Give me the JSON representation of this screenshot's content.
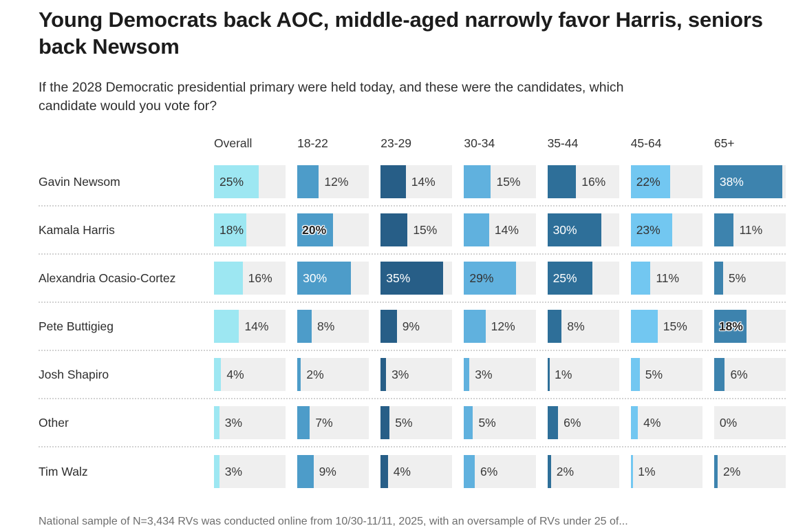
{
  "title": "Young Democrats back AOC, middle-aged narrowly favor Harris, seniors back Newsom",
  "subtitle": "If the 2028 Democratic presidential primary were held today, and these were the candidates, which candidate would you vote for?",
  "footnote": "National sample of N=3,434 RVs was conducted online from 10/30-11/11, 2025, with an oversample of RVs under 25 of...",
  "chart_data": {
    "type": "bar",
    "orientation": "horizontal",
    "max_value": 40,
    "track_color": "#efefef",
    "value_suffix": "%",
    "columns": [
      {
        "label": "Overall",
        "color": "#9de7f2",
        "dark": false
      },
      {
        "label": "18-22",
        "color": "#4d9cc9",
        "dark": true
      },
      {
        "label": "23-29",
        "color": "#275e87",
        "dark": true
      },
      {
        "label": "30-34",
        "color": "#60b1de",
        "dark": false
      },
      {
        "label": "35-44",
        "color": "#2e6f99",
        "dark": true
      },
      {
        "label": "45-64",
        "color": "#72c7f1",
        "dark": false
      },
      {
        "label": "65+",
        "color": "#3d83ae",
        "dark": true
      }
    ],
    "rows": [
      {
        "label": "Gavin Newsom",
        "values": [
          25,
          12,
          14,
          15,
          16,
          22,
          38
        ]
      },
      {
        "label": "Kamala Harris",
        "values": [
          18,
          20,
          15,
          14,
          30,
          23,
          11
        ]
      },
      {
        "label": "Alexandria Ocasio-Cortez",
        "values": [
          16,
          30,
          35,
          29,
          25,
          11,
          5
        ]
      },
      {
        "label": "Pete Buttigieg",
        "values": [
          14,
          8,
          9,
          12,
          8,
          15,
          18
        ]
      },
      {
        "label": "Josh Shapiro",
        "values": [
          4,
          2,
          3,
          3,
          1,
          5,
          6
        ]
      },
      {
        "label": "Other",
        "values": [
          3,
          7,
          5,
          5,
          6,
          4,
          0
        ]
      },
      {
        "label": "Tim Walz",
        "values": [
          3,
          9,
          4,
          6,
          2,
          1,
          2
        ]
      }
    ]
  }
}
